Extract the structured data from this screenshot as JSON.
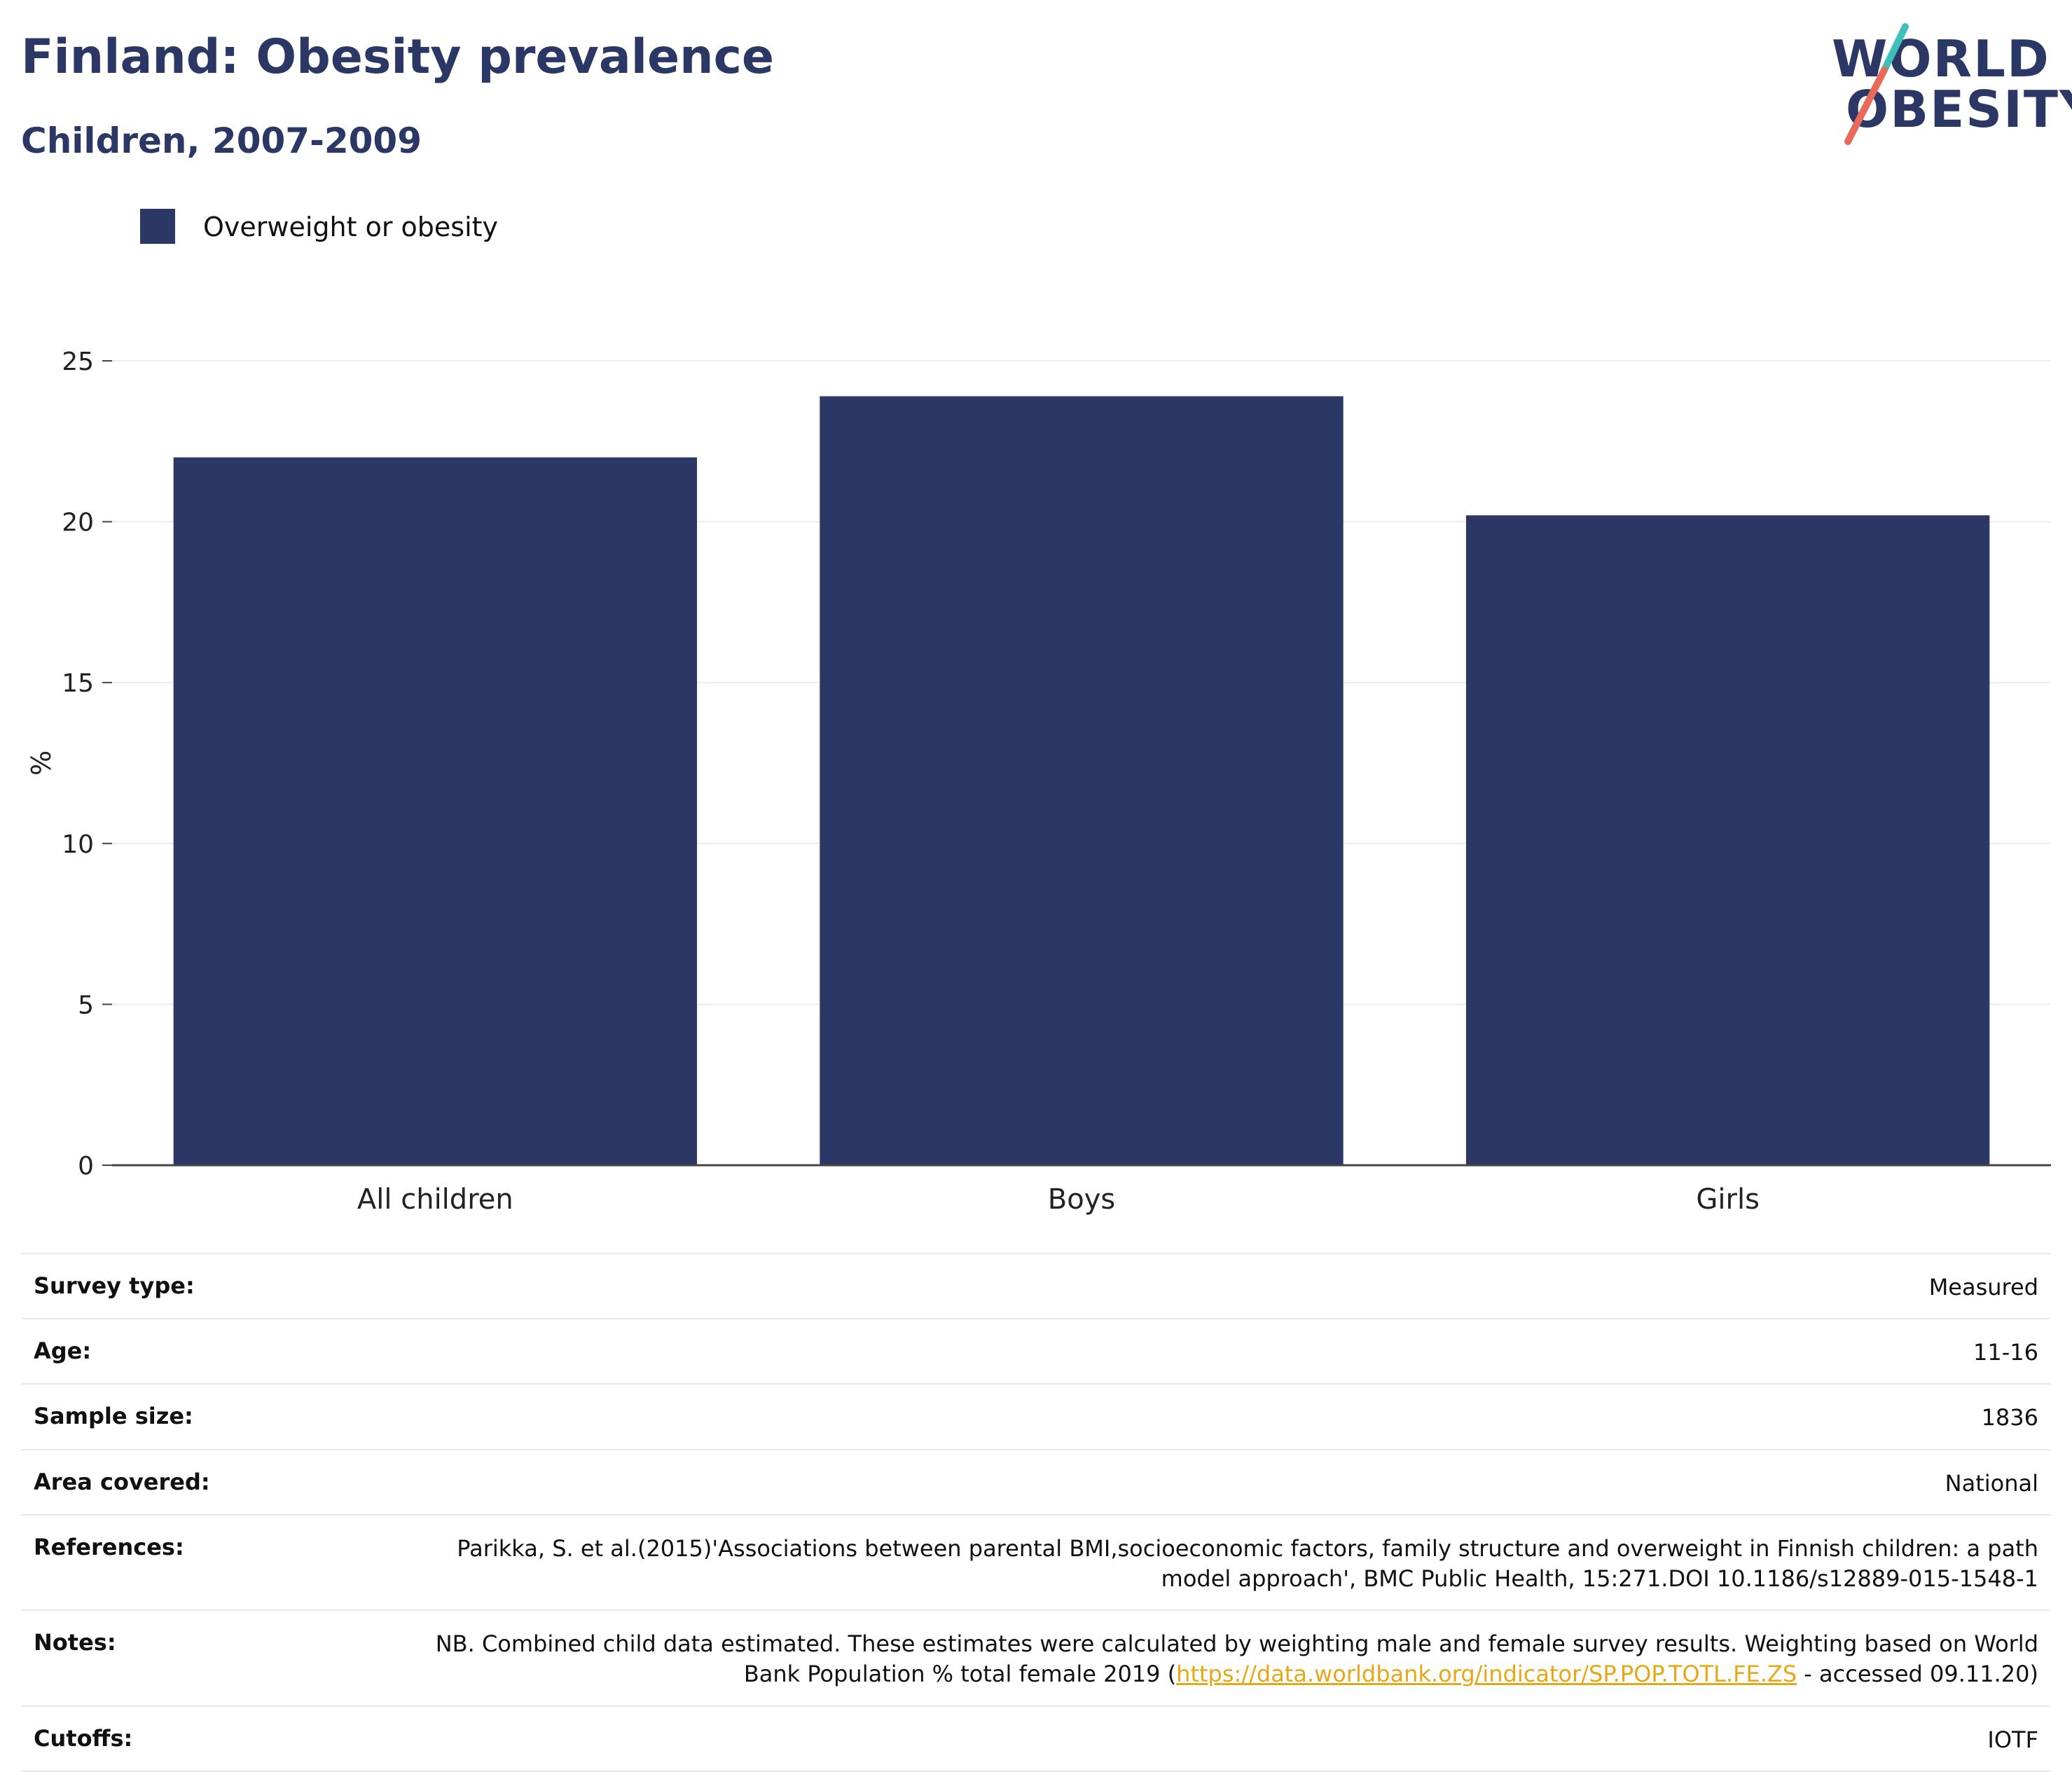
{
  "header": {
    "title": "Finland: Obesity prevalence",
    "subtitle": "Children, 2007-2009"
  },
  "logo": {
    "line1": "WORLD",
    "line2": "OBESITY"
  },
  "legend": {
    "label": "Overweight or obesity"
  },
  "colors": {
    "bar": "#2b3764",
    "accent_teal": "#3fbfb9",
    "accent_coral": "#e96a5a",
    "link": "#e6a817"
  },
  "chart_data": {
    "type": "bar",
    "title": "Finland: Obesity prevalence",
    "subtitle": "Children, 2007-2009",
    "categories": [
      "All children",
      "Boys",
      "Girls"
    ],
    "series": [
      {
        "name": "Overweight or obesity",
        "values": [
          22.0,
          23.9,
          20.2
        ]
      }
    ],
    "ylabel": "%",
    "xlabel": "",
    "ylim": [
      0,
      25
    ],
    "yticks": [
      0,
      5,
      10,
      15,
      20,
      25
    ],
    "grid": true,
    "legend_position": "top-left"
  },
  "info": {
    "survey_type": {
      "label": "Survey type:",
      "value": "Measured"
    },
    "age": {
      "label": "Age:",
      "value": "11-16"
    },
    "sample_size": {
      "label": "Sample size:",
      "value": "1836"
    },
    "area_covered": {
      "label": "Area covered:",
      "value": "National"
    },
    "references": {
      "label": "References:",
      "value": "Parikka, S. et al.(2015)'Associations between parental BMI,socioeconomic factors, family structure and overweight in Finnish children: a path model approach', BMC Public Health, 15:271.DOI 10.1186/s12889-015-1548-1"
    },
    "notes": {
      "label": "Notes:",
      "text_before": "NB. Combined child data estimated. These estimates were calculated by weighting male and female survey results. Weighting based on World Bank Population % total female 2019 (",
      "link": "https://data.worldbank.org/indicator/SP.POP.TOTL.FE.ZS",
      "text_after": " - accessed 09.11.20)"
    },
    "cutoffs": {
      "label": "Cutoffs:",
      "value": "IOTF"
    }
  }
}
